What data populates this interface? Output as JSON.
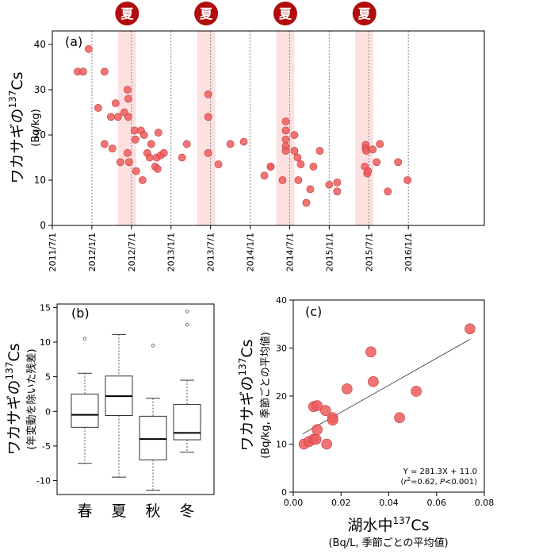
{
  "chart_data": [
    {
      "type": "scatter",
      "panel_label": "(a)",
      "ylabel": "ワカサギの137Cs",
      "ylabel_main": "ワカサギの",
      "ylabel_sup": "137",
      "ylabel_tail": "Cs",
      "ylabel_unit": "(Bq/kg)",
      "summer_badge": "夏",
      "ylim": [
        0,
        43
      ],
      "yticks": [
        "0",
        "10",
        "20",
        "30",
        "40"
      ],
      "xticks": [
        "2011/7/1",
        "2012/1/1",
        "2012/7/1",
        "2013/1/1",
        "2013/7/1",
        "2014/1/1",
        "2014/7/1",
        "2015/1/1",
        "2015/7/1",
        "2016/1/1"
      ],
      "summer_periods": [
        [
          2012.33,
          2012.56
        ],
        [
          2013.33,
          2013.56
        ],
        [
          2014.33,
          2014.56
        ],
        [
          2015.33,
          2015.56
        ]
      ],
      "points": [
        [
          2011.82,
          34
        ],
        [
          2011.89,
          34
        ],
        [
          2011.96,
          39
        ],
        [
          2012.08,
          26
        ],
        [
          2012.16,
          34
        ],
        [
          2012.24,
          24
        ],
        [
          2012.3,
          27
        ],
        [
          2012.33,
          24
        ],
        [
          2012.16,
          18
        ],
        [
          2012.26,
          17
        ],
        [
          2012.36,
          14
        ],
        [
          2012.41,
          25
        ],
        [
          2012.45,
          30
        ],
        [
          2012.46,
          28
        ],
        [
          2012.46,
          24
        ],
        [
          2012.45,
          16
        ],
        [
          2012.47,
          14
        ],
        [
          2012.54,
          21
        ],
        [
          2012.56,
          12
        ],
        [
          2012.62,
          21
        ],
        [
          2012.55,
          19
        ],
        [
          2012.64,
          10
        ],
        [
          2012.66,
          20
        ],
        [
          2012.7,
          16
        ],
        [
          2012.73,
          15
        ],
        [
          2012.75,
          18
        ],
        [
          2012.8,
          13
        ],
        [
          2012.83,
          12.5
        ],
        [
          2012.82,
          15
        ],
        [
          2012.84,
          20.5
        ],
        [
          2012.87,
          15.5
        ],
        [
          2012.91,
          16
        ],
        [
          2013.14,
          15
        ],
        [
          2013.2,
          18
        ],
        [
          2013.47,
          29
        ],
        [
          2013.47,
          24
        ],
        [
          2013.47,
          16
        ],
        [
          2013.6,
          13.5
        ],
        [
          2013.75,
          18
        ],
        [
          2013.92,
          18.5
        ],
        [
          2014.18,
          11
        ],
        [
          2014.26,
          13
        ],
        [
          2014.26,
          13
        ],
        [
          2014.45,
          23
        ],
        [
          2014.45,
          21
        ],
        [
          2014.45,
          19
        ],
        [
          2014.45,
          17.5
        ],
        [
          2014.45,
          16.5
        ],
        [
          2014.41,
          10
        ],
        [
          2014.56,
          20
        ],
        [
          2014.56,
          16.5
        ],
        [
          2014.6,
          15
        ],
        [
          2014.61,
          10
        ],
        [
          2014.64,
          13.5
        ],
        [
          2014.71,
          5
        ],
        [
          2014.76,
          8
        ],
        [
          2014.8,
          13
        ],
        [
          2014.88,
          16.5
        ],
        [
          2015.0,
          9
        ],
        [
          2015.1,
          9.5
        ],
        [
          2015.1,
          7.5
        ],
        [
          2015.46,
          17.8
        ],
        [
          2015.46,
          17
        ],
        [
          2015.47,
          16.5
        ],
        [
          2015.45,
          13
        ],
        [
          2015.48,
          11.5
        ],
        [
          2015.49,
          12
        ],
        [
          2015.55,
          16.8
        ],
        [
          2015.6,
          14
        ],
        [
          2015.64,
          18
        ],
        [
          2015.74,
          7.5
        ],
        [
          2015.87,
          14
        ],
        [
          2015.99,
          10
        ]
      ]
    },
    {
      "type": "box",
      "panel_label": "(b)",
      "ylabel": "ワカサギの137Cs",
      "ylabel_main": "ワカサギの",
      "ylabel_sup": "137",
      "ylabel_tail": "Cs",
      "ylabel_unit": "(年変動を除いた残差)",
      "ylim": [
        -12,
        15.5
      ],
      "yticks": [
        "15",
        "10",
        "5",
        "0",
        "-5",
        "-10"
      ],
      "categories": [
        "春",
        "夏",
        "秋",
        "冬"
      ],
      "boxes": [
        {
          "whisker_low": -7.5,
          "q1": -2.3,
          "median": -0.5,
          "q3": 2.5,
          "whisker_high": 5.5,
          "outliers": [
            10.5
          ]
        },
        {
          "whisker_low": -9.5,
          "q1": -0.6,
          "median": 2.2,
          "q3": 5.1,
          "whisker_high": 11.1,
          "outliers": []
        },
        {
          "whisker_low": -11.4,
          "q1": -7.0,
          "median": -4.0,
          "q3": -0.7,
          "whisker_high": 1.9,
          "outliers": [
            9.5
          ]
        },
        {
          "whisker_low": -5.9,
          "q1": -4.1,
          "median": -3.1,
          "q3": 1.0,
          "whisker_high": 4.5,
          "outliers": [
            12.5,
            14.4
          ]
        }
      ]
    },
    {
      "type": "scatter",
      "panel_label": "(c)",
      "ylabel": "ワカサギの137Cs",
      "ylabel_main": "ワカサギの",
      "ylabel_sup": "137",
      "ylabel_tail": "Cs",
      "ylabel_unit": "(Bq/kg, 季節ごとの平均値)",
      "xlabel": "湖水中137Cs",
      "xlabel_main": "湖水中",
      "xlabel_sup": "137",
      "xlabel_tail": "Cs",
      "xlabel_unit": "(Bq/L, 季節ごとの平均値)",
      "xlim": [
        0,
        0.08
      ],
      "ylim": [
        0,
        40
      ],
      "xticks": [
        "0.00",
        "0.02",
        "0.04",
        "0.06",
        "0.08"
      ],
      "yticks": [
        "0",
        "10",
        "20",
        "30",
        "40"
      ],
      "equation": "Y = 281.3X + 11.0",
      "stats": "(r2=0.62, P<0.001)",
      "stats_open": "(",
      "stats_r": "r",
      "stats_sup": "2",
      "stats_eq": "=0.62, ",
      "stats_p": "P",
      "stats_close": "<0.001)",
      "fit": {
        "slope": 281.3,
        "intercept": 11.0,
        "x_range": [
          0.004,
          0.074
        ]
      },
      "points": [
        [
          0.0045,
          10
        ],
        [
          0.0065,
          10.5
        ],
        [
          0.0085,
          11
        ],
        [
          0.0095,
          11
        ],
        [
          0.0085,
          17.8
        ],
        [
          0.01,
          18
        ],
        [
          0.01,
          13
        ],
        [
          0.0135,
          17
        ],
        [
          0.014,
          10
        ],
        [
          0.0165,
          15.5
        ],
        [
          0.0165,
          15
        ],
        [
          0.0225,
          21.5
        ],
        [
          0.0325,
          29.2
        ],
        [
          0.0335,
          23
        ],
        [
          0.0445,
          15.5
        ],
        [
          0.0515,
          21
        ],
        [
          0.074,
          34
        ]
      ]
    }
  ]
}
